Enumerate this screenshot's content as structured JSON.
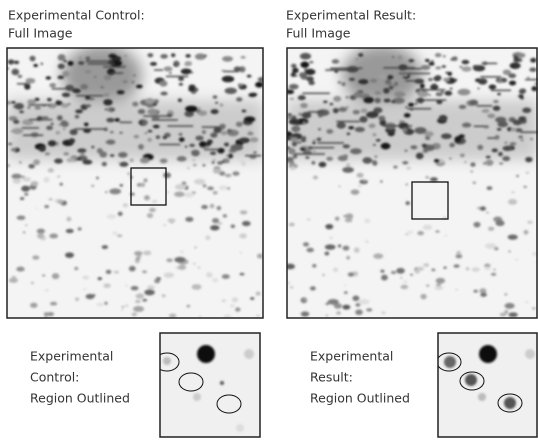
{
  "panels": [
    {
      "title": [
        "Experimental Control:",
        "Full Image"
      ],
      "inset_label": [
        "Experimental",
        "Control:",
        "Region Outlined"
      ]
    },
    {
      "title": [
        "Experimental Result:",
        "Full Image"
      ],
      "inset_label": [
        "Experimental",
        "Result:",
        "Region Outlined"
      ]
    }
  ]
}
